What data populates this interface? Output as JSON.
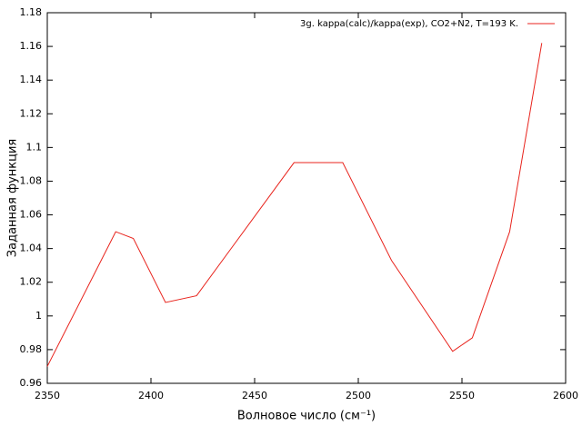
{
  "chart_data": {
    "type": "line",
    "xlabel": "Волновое число (см⁻¹)",
    "ylabel": "Заданная функция",
    "x": [
      2350,
      2383,
      2391.5,
      2407,
      2422,
      2469,
      2492.5,
      2516,
      2545.5,
      2555,
      2573,
      2588.5
    ],
    "series": [
      {
        "name": "3g. kappa(calc)/kappa(exp),  CO2+N2, T=193 K.",
        "color": "#e8231c",
        "values": [
          0.97,
          1.05,
          1.046,
          1.008,
          1.012,
          1.091,
          1.091,
          1.033,
          0.979,
          0.987,
          1.05,
          1.162
        ]
      }
    ],
    "xlim": [
      2350,
      2600
    ],
    "xticks": [
      2350,
      2400,
      2450,
      2500,
      2550,
      2600
    ],
    "ylim": [
      0.96,
      1.18
    ],
    "yticks": [
      0.96,
      0.98,
      1,
      1.02,
      1.04,
      1.06,
      1.08,
      1.1,
      1.12,
      1.14,
      1.16,
      1.18
    ],
    "grid": false,
    "legend": "top-right"
  }
}
